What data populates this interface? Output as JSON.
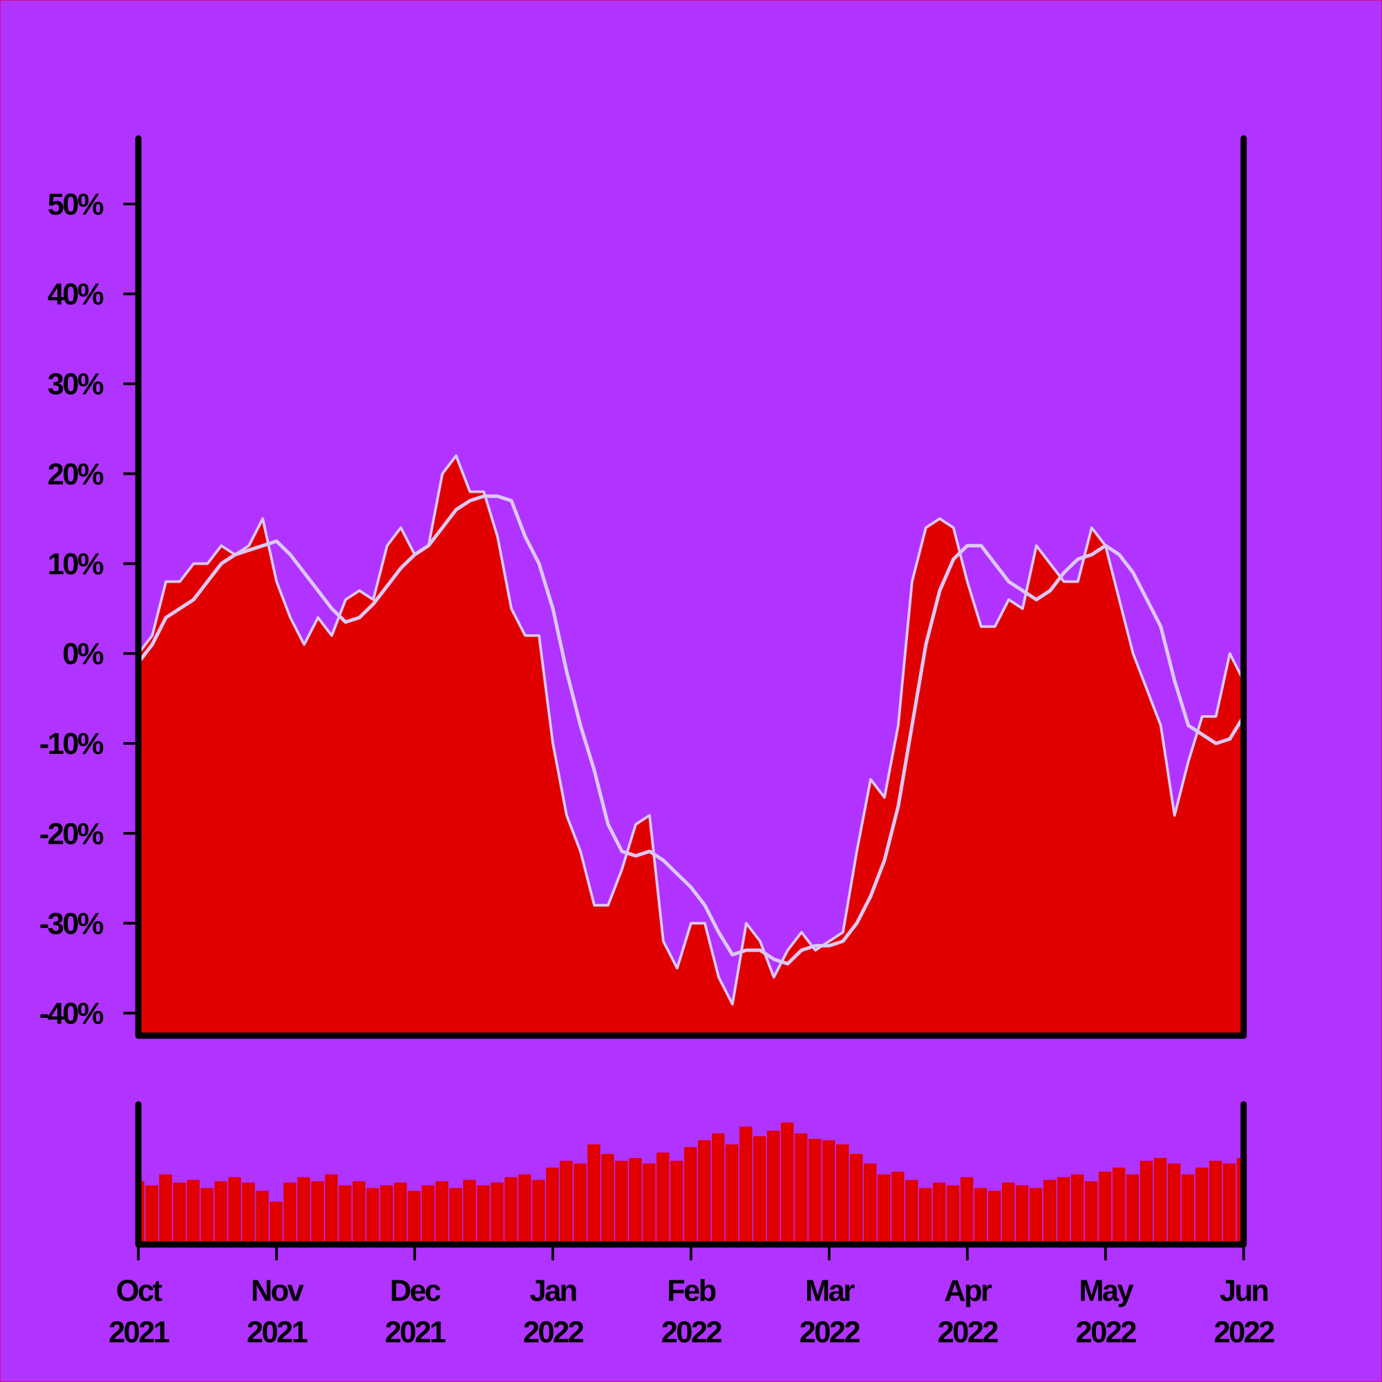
{
  "chart_data": [
    {
      "type": "area",
      "x": [
        0,
        0.1,
        0.2,
        0.3,
        0.4,
        0.5,
        0.6,
        0.7,
        0.8,
        0.9,
        1,
        1.1,
        1.2,
        1.3,
        1.4,
        1.5,
        1.6,
        1.7,
        1.8,
        1.9,
        2,
        2.1,
        2.2,
        2.3,
        2.4,
        2.5,
        2.6,
        2.7,
        2.8,
        2.9,
        3,
        3.1,
        3.2,
        3.3,
        3.4,
        3.5,
        3.6,
        3.7,
        3.8,
        3.9,
        4,
        4.1,
        4.2,
        4.3,
        4.4,
        4.5,
        4.6,
        4.7,
        4.8,
        4.9,
        5,
        5.1,
        5.2,
        5.3,
        5.4,
        5.5,
        5.6,
        5.7,
        5.8,
        5.9,
        6,
        6.1,
        6.2,
        6.3,
        6.4,
        6.5,
        6.6,
        6.7,
        6.8,
        6.9,
        7,
        7.1,
        7.2,
        7.3,
        7.4,
        7.5,
        7.6,
        7.7,
        7.8,
        7.9,
        8
      ],
      "xlim": [
        0,
        8
      ],
      "ylim": [
        -42.5,
        57.3
      ],
      "yticks": [
        {
          "value": 50,
          "label": "50%"
        },
        {
          "value": 40,
          "label": "40%"
        },
        {
          "value": 30,
          "label": "30%"
        },
        {
          "value": 20,
          "label": "20%"
        },
        {
          "value": 10,
          "label": "10%"
        },
        {
          "value": 0,
          "label": "0%"
        },
        {
          "value": -10,
          "label": "-10%"
        },
        {
          "value": -20,
          "label": "-20%"
        },
        {
          "value": -30,
          "label": "-30%"
        },
        {
          "value": -40,
          "label": "-40%"
        }
      ],
      "series": [
        {
          "type": "area",
          "color": "#e00000",
          "line_color": "#dcc8f4",
          "values": [
            0,
            2,
            8,
            8,
            10,
            10,
            12,
            11,
            12,
            15,
            8,
            4,
            1,
            4,
            2,
            6,
            7,
            6,
            12,
            14,
            11,
            12,
            20,
            22,
            18,
            18,
            13,
            5,
            2,
            2,
            -10,
            -18,
            -22,
            -28,
            -28,
            -24,
            -19,
            -18,
            -32,
            -35,
            -30,
            -30,
            -36,
            -39,
            -30,
            -32,
            -36,
            -33,
            -31,
            -33,
            -32,
            -31,
            -22,
            -14,
            -16,
            -8,
            8,
            14,
            15,
            14,
            8,
            3,
            3,
            6,
            5,
            12,
            10,
            8,
            8,
            14,
            12,
            6,
            0,
            -4,
            -8,
            -18,
            -12,
            -7,
            -7,
            0,
            -3
          ]
        },
        {
          "type": "line",
          "color": "#dcc8f4",
          "values": [
            -1,
            1,
            4,
            5,
            6,
            8,
            10,
            11,
            11.5,
            12,
            12.5,
            11,
            9,
            7,
            5,
            3.5,
            4,
            5.5,
            7.5,
            9.5,
            11,
            12,
            14,
            16,
            17,
            17.5,
            17.5,
            17,
            13,
            10,
            5,
            -2,
            -8,
            -13,
            -19,
            -22,
            -22.5,
            -22,
            -23,
            -24.5,
            -26,
            -28,
            -31,
            -33.5,
            -33,
            -33,
            -34,
            -34.5,
            -33,
            -32.5,
            -32.5,
            -32,
            -30,
            -27,
            -23,
            -17,
            -8,
            1,
            7,
            10.5,
            12,
            12,
            10,
            8,
            7,
            6,
            7,
            9,
            10.5,
            11,
            12,
            11,
            9,
            6,
            3,
            -3,
            -8,
            -9,
            -10,
            -9.5,
            -7
          ]
        }
      ]
    },
    {
      "type": "bar",
      "x": [
        0,
        0.1,
        0.2,
        0.3,
        0.4,
        0.5,
        0.6,
        0.7,
        0.8,
        0.9,
        1,
        1.1,
        1.2,
        1.3,
        1.4,
        1.5,
        1.6,
        1.7,
        1.8,
        1.9,
        2,
        2.1,
        2.2,
        2.3,
        2.4,
        2.5,
        2.6,
        2.7,
        2.8,
        2.9,
        3,
        3.1,
        3.2,
        3.3,
        3.4,
        3.5,
        3.6,
        3.7,
        3.8,
        3.9,
        4,
        4.1,
        4.2,
        4.3,
        4.4,
        4.5,
        4.6,
        4.7,
        4.8,
        4.9,
        5,
        5.1,
        5.2,
        5.3,
        5.4,
        5.5,
        5.6,
        5.7,
        5.8,
        5.9,
        6,
        6.1,
        6.2,
        6.3,
        6.4,
        6.5,
        6.6,
        6.7,
        6.8,
        6.9,
        7,
        7.1,
        7.2,
        7.3,
        7.4,
        7.5,
        7.6,
        7.7,
        7.8,
        7.9,
        8
      ],
      "xlim": [
        0,
        8
      ],
      "ylim": [
        0,
        100
      ],
      "color": "#e00000",
      "values": [
        45,
        42,
        50,
        44,
        46,
        40,
        45,
        48,
        44,
        38,
        30,
        44,
        48,
        45,
        50,
        42,
        45,
        40,
        42,
        44,
        38,
        42,
        45,
        40,
        46,
        42,
        44,
        48,
        50,
        46,
        55,
        60,
        58,
        72,
        65,
        60,
        62,
        58,
        66,
        60,
        70,
        75,
        80,
        72,
        85,
        78,
        82,
        88,
        80,
        76,
        75,
        72,
        65,
        58,
        50,
        52,
        46,
        40,
        44,
        42,
        48,
        40,
        38,
        44,
        42,
        40,
        46,
        48,
        50,
        45,
        52,
        55,
        50,
        60,
        62,
        58,
        50,
        55,
        60,
        58,
        62
      ],
      "xticks": [
        {
          "value": 0,
          "label": "Oct 2021"
        },
        {
          "value": 1,
          "label": "Nov 2021"
        },
        {
          "value": 2,
          "label": "Dec 2021"
        },
        {
          "value": 3,
          "label": "Jan 2022"
        },
        {
          "value": 4,
          "label": "Feb 2022"
        },
        {
          "value": 5,
          "label": "Mar 2022"
        },
        {
          "value": 6,
          "label": "Apr 2022"
        },
        {
          "value": 7,
          "label": "May 2022"
        },
        {
          "value": 8,
          "label": "Jun 2022"
        }
      ]
    }
  ]
}
